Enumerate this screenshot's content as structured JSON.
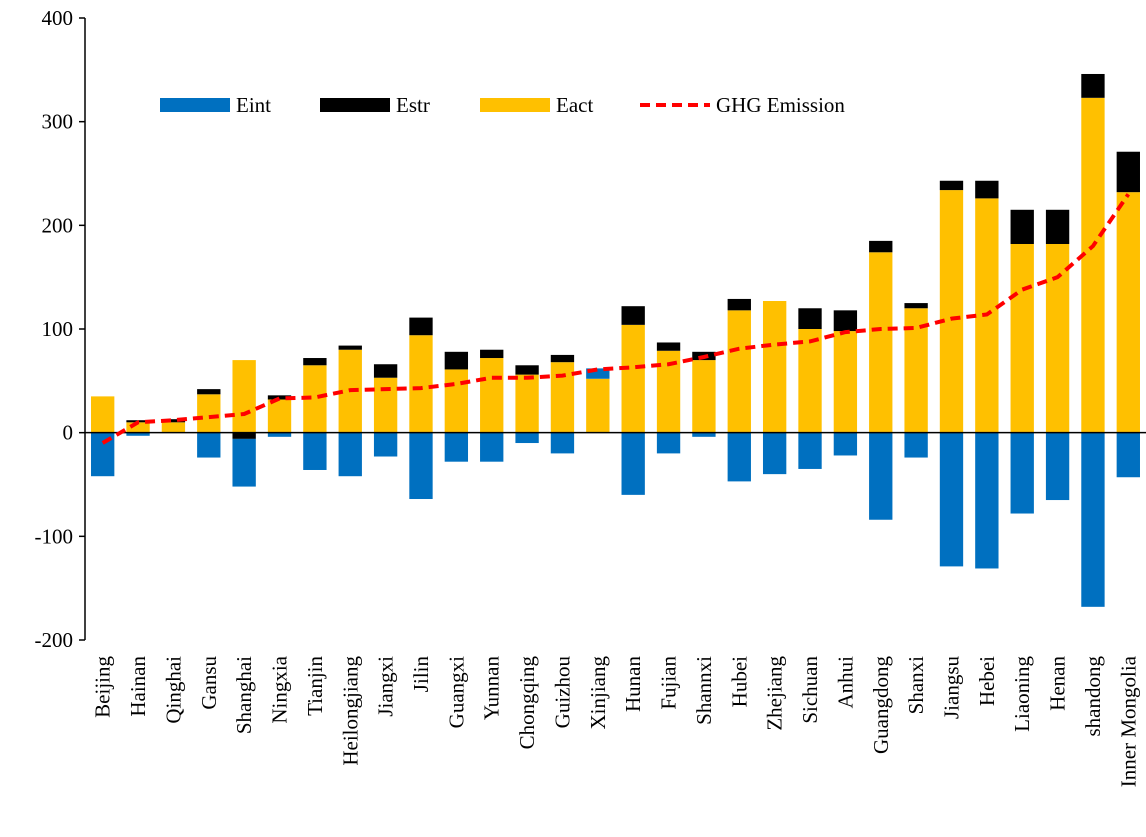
{
  "chart_data": {
    "type": "bar-line",
    "categories": [
      "Beijing",
      "Hainan",
      "Qinghai",
      "Gansu",
      "Shanghai",
      "Ningxia",
      "Tianjin",
      "Heilongjiang",
      "Jiangxi",
      "Jilin",
      "Guangxi",
      "Yunnan",
      "Chongqing",
      "Guizhou",
      "Xinjiang",
      "Hunan",
      "Fujian",
      "Shannxi",
      "Hubei",
      "Zhejiang",
      "Sichuan",
      "Anhui",
      "Guangdong",
      "Shanxi",
      "Jiangsu",
      "Hebei",
      "Liaoning",
      "Henan",
      "shandong",
      "Inner Mongolia"
    ],
    "series": [
      {
        "name": "Eint",
        "color": "#0070c0",
        "values": [
          -42,
          -3,
          0,
          -24,
          -46,
          -4,
          -36,
          -42,
          -23,
          -64,
          -28,
          -28,
          -10,
          -20,
          10,
          -60,
          -20,
          -4,
          -47,
          -40,
          -35,
          -22,
          -84,
          -24,
          -129,
          -131,
          -78,
          -65,
          -168,
          -43
        ]
      },
      {
        "name": "Estr",
        "color": "#000000",
        "values": [
          0,
          2,
          3,
          5,
          -6,
          4,
          7,
          4,
          13,
          17,
          17,
          8,
          9,
          7,
          0,
          18,
          8,
          8,
          11,
          0,
          20,
          20,
          11,
          5,
          9,
          17,
          33,
          33,
          23,
          39
        ]
      },
      {
        "name": "Eact",
        "color": "#ffc000",
        "values": [
          35,
          10,
          10,
          37,
          70,
          32,
          65,
          80,
          53,
          94,
          61,
          72,
          56,
          68,
          52,
          104,
          79,
          70,
          118,
          127,
          100,
          98,
          174,
          120,
          234,
          226,
          182,
          182,
          323,
          232
        ]
      },
      {
        "name": "GHG Emission",
        "color": "#ff0000",
        "line": true,
        "values": [
          -10,
          10,
          12,
          15,
          18,
          33,
          34,
          41,
          42,
          43,
          47,
          53,
          53,
          55,
          61,
          63,
          66,
          73,
          81,
          85,
          88,
          97,
          100,
          101,
          110,
          114,
          138,
          150,
          180,
          230
        ]
      }
    ],
    "ylim": [
      -200,
      400
    ],
    "yticks": [
      -200,
      -100,
      0,
      100,
      200,
      300,
      400
    ],
    "grid": false
  }
}
